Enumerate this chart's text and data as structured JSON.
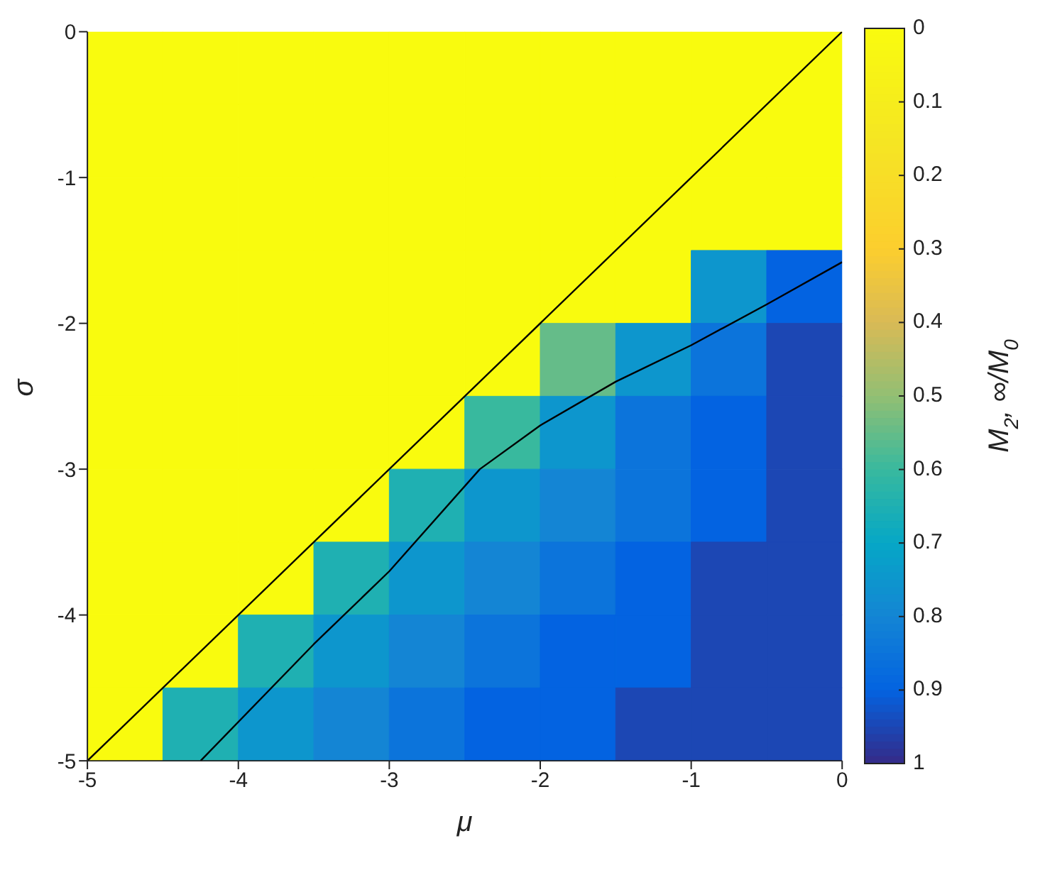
{
  "chart_data": {
    "type": "heatmap",
    "xlabel": "μ",
    "ylabel": "σ",
    "clabel": "M$_{2}$, ∞/M$_{0}$",
    "xlim": [
      -5,
      0
    ],
    "ylim": [
      -5,
      0
    ],
    "xticks": [
      -5,
      -4,
      -3,
      -2,
      -1,
      0
    ],
    "yticks": [
      -5,
      -4,
      -3,
      -2,
      -1,
      0
    ],
    "clim": [
      1,
      0
    ],
    "cticks": [
      0,
      0.1,
      0.2,
      0.3,
      0.4,
      0.5,
      0.6,
      0.7,
      0.8,
      0.9,
      1
    ],
    "cells": [
      [
        0,
        0,
        0,
        0,
        0,
        0,
        0,
        0,
        0,
        0
      ],
      [
        0,
        0,
        0,
        0,
        0,
        0,
        0,
        0,
        0,
        0
      ],
      [
        0,
        0,
        0,
        0,
        0,
        0,
        0,
        0,
        0,
        0
      ],
      [
        0,
        0,
        0,
        0,
        0,
        0,
        0,
        0,
        0.75,
        0.9
      ],
      [
        0,
        0,
        0,
        0,
        0,
        0,
        0.55,
        0.75,
        0.85,
        0.95
      ],
      [
        0,
        0,
        0,
        0,
        0,
        0.6,
        0.75,
        0.85,
        0.9,
        0.95
      ],
      [
        0,
        0,
        0,
        0,
        0.65,
        0.75,
        0.8,
        0.85,
        0.9,
        0.95
      ],
      [
        0,
        0,
        0,
        0.65,
        0.75,
        0.8,
        0.85,
        0.9,
        0.95,
        0.95
      ],
      [
        0,
        0,
        0.65,
        0.75,
        0.8,
        0.85,
        0.9,
        0.9,
        0.95,
        0.95
      ],
      [
        0,
        0.65,
        0.75,
        0.8,
        0.85,
        0.9,
        0.9,
        0.95,
        0.95,
        0.95
      ]
    ],
    "series": [
      {
        "type": "line",
        "color": "#000000",
        "x": [
          -5,
          0
        ],
        "values": [
          -5,
          0
        ]
      },
      {
        "type": "line",
        "color": "#000000",
        "x": [
          -4.25,
          -3.5,
          -3,
          -2.4,
          -2,
          -1.5,
          -1,
          -0.5,
          0
        ],
        "values": [
          -5,
          -4.2,
          -3.7,
          -3,
          -2.7,
          -2.4,
          -2.15,
          -1.87,
          -1.58
        ]
      }
    ]
  }
}
